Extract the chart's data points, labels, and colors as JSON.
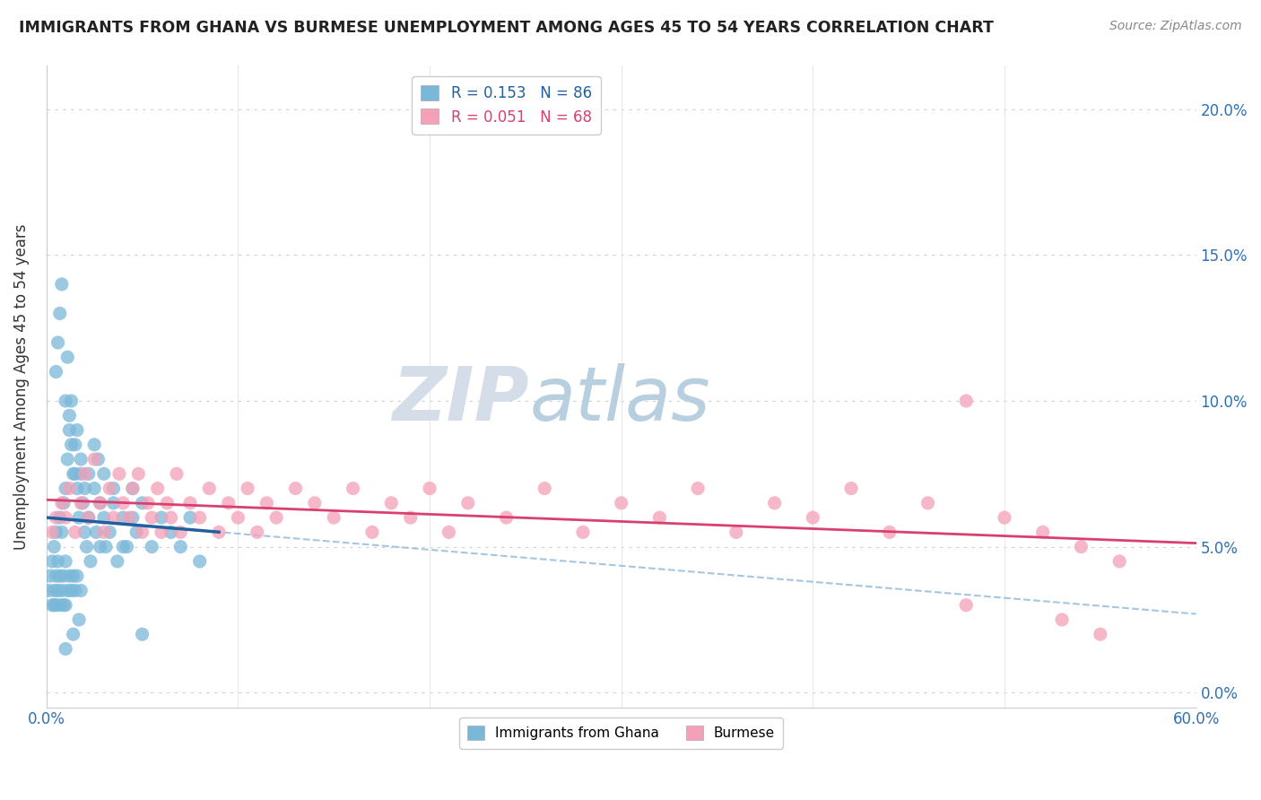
{
  "title": "IMMIGRANTS FROM GHANA VS BURMESE UNEMPLOYMENT AMONG AGES 45 TO 54 YEARS CORRELATION CHART",
  "source": "Source: ZipAtlas.com",
  "ylabel": "Unemployment Among Ages 45 to 54 years",
  "xlim": [
    0.0,
    0.6
  ],
  "ylim": [
    -0.005,
    0.215
  ],
  "yticks": [
    0.0,
    0.05,
    0.1,
    0.15,
    0.2
  ],
  "ytick_labels": [
    "0.0%",
    "5.0%",
    "10.0%",
    "15.0%",
    "20.0%"
  ],
  "ghana_color": "#7ab8d9",
  "burmese_color": "#f4a0b8",
  "ghana_line_color": "#2060a0",
  "burmese_line_color": "#d94070",
  "ghana_dashed_color": "#90b8d8",
  "ghana_R": 0.153,
  "ghana_N": 86,
  "burmese_R": 0.051,
  "burmese_N": 68,
  "ghana_label": "Immigrants from Ghana",
  "burmese_label": "Burmese",
  "legend_ghana_color": "#2060a0",
  "legend_burmese_color": "#d94070",
  "watermark_zip": "ZIP",
  "watermark_atlas": "atlas",
  "background_color": "#ffffff",
  "grid_color": "#e8e8e8",
  "dot_grid_color": "#d0d0d0",
  "ghana_x": [
    0.001,
    0.002,
    0.003,
    0.003,
    0.004,
    0.004,
    0.004,
    0.005,
    0.005,
    0.005,
    0.006,
    0.006,
    0.007,
    0.007,
    0.007,
    0.008,
    0.008,
    0.009,
    0.009,
    0.009,
    0.01,
    0.01,
    0.01,
    0.011,
    0.011,
    0.012,
    0.012,
    0.013,
    0.013,
    0.014,
    0.014,
    0.015,
    0.015,
    0.016,
    0.016,
    0.017,
    0.018,
    0.018,
    0.019,
    0.02,
    0.021,
    0.022,
    0.023,
    0.025,
    0.026,
    0.027,
    0.028,
    0.03,
    0.031,
    0.033,
    0.035,
    0.037,
    0.04,
    0.042,
    0.045,
    0.047,
    0.05,
    0.055,
    0.06,
    0.065,
    0.07,
    0.075,
    0.08,
    0.005,
    0.006,
    0.007,
    0.008,
    0.01,
    0.011,
    0.012,
    0.013,
    0.015,
    0.016,
    0.018,
    0.02,
    0.022,
    0.025,
    0.028,
    0.03,
    0.035,
    0.04,
    0.045,
    0.05,
    0.017,
    0.014,
    0.01
  ],
  "ghana_y": [
    0.035,
    0.04,
    0.03,
    0.045,
    0.035,
    0.05,
    0.03,
    0.04,
    0.055,
    0.03,
    0.045,
    0.035,
    0.06,
    0.04,
    0.03,
    0.055,
    0.035,
    0.065,
    0.04,
    0.03,
    0.07,
    0.045,
    0.03,
    0.08,
    0.035,
    0.09,
    0.04,
    0.1,
    0.035,
    0.075,
    0.04,
    0.085,
    0.035,
    0.07,
    0.04,
    0.06,
    0.075,
    0.035,
    0.065,
    0.055,
    0.05,
    0.06,
    0.045,
    0.07,
    0.055,
    0.08,
    0.05,
    0.06,
    0.05,
    0.055,
    0.065,
    0.045,
    0.06,
    0.05,
    0.07,
    0.055,
    0.065,
    0.05,
    0.06,
    0.055,
    0.05,
    0.06,
    0.045,
    0.11,
    0.12,
    0.13,
    0.14,
    0.1,
    0.115,
    0.095,
    0.085,
    0.075,
    0.09,
    0.08,
    0.07,
    0.075,
    0.085,
    0.065,
    0.075,
    0.07,
    0.05,
    0.06,
    0.02,
    0.025,
    0.02,
    0.015
  ],
  "burmese_x": [
    0.003,
    0.005,
    0.008,
    0.01,
    0.012,
    0.015,
    0.018,
    0.02,
    0.022,
    0.025,
    0.028,
    0.03,
    0.033,
    0.035,
    0.038,
    0.04,
    0.043,
    0.045,
    0.048,
    0.05,
    0.053,
    0.055,
    0.058,
    0.06,
    0.063,
    0.065,
    0.068,
    0.07,
    0.075,
    0.08,
    0.085,
    0.09,
    0.095,
    0.1,
    0.105,
    0.11,
    0.115,
    0.12,
    0.13,
    0.14,
    0.15,
    0.16,
    0.17,
    0.18,
    0.19,
    0.2,
    0.21,
    0.22,
    0.24,
    0.26,
    0.28,
    0.3,
    0.32,
    0.34,
    0.36,
    0.38,
    0.4,
    0.42,
    0.44,
    0.46,
    0.48,
    0.5,
    0.52,
    0.54,
    0.56,
    0.48,
    0.53,
    0.55
  ],
  "burmese_y": [
    0.055,
    0.06,
    0.065,
    0.06,
    0.07,
    0.055,
    0.065,
    0.075,
    0.06,
    0.08,
    0.065,
    0.055,
    0.07,
    0.06,
    0.075,
    0.065,
    0.06,
    0.07,
    0.075,
    0.055,
    0.065,
    0.06,
    0.07,
    0.055,
    0.065,
    0.06,
    0.075,
    0.055,
    0.065,
    0.06,
    0.07,
    0.055,
    0.065,
    0.06,
    0.07,
    0.055,
    0.065,
    0.06,
    0.07,
    0.065,
    0.06,
    0.07,
    0.055,
    0.065,
    0.06,
    0.07,
    0.055,
    0.065,
    0.06,
    0.07,
    0.055,
    0.065,
    0.06,
    0.07,
    0.055,
    0.065,
    0.06,
    0.07,
    0.055,
    0.065,
    0.1,
    0.06,
    0.055,
    0.05,
    0.045,
    0.03,
    0.025,
    0.02
  ]
}
